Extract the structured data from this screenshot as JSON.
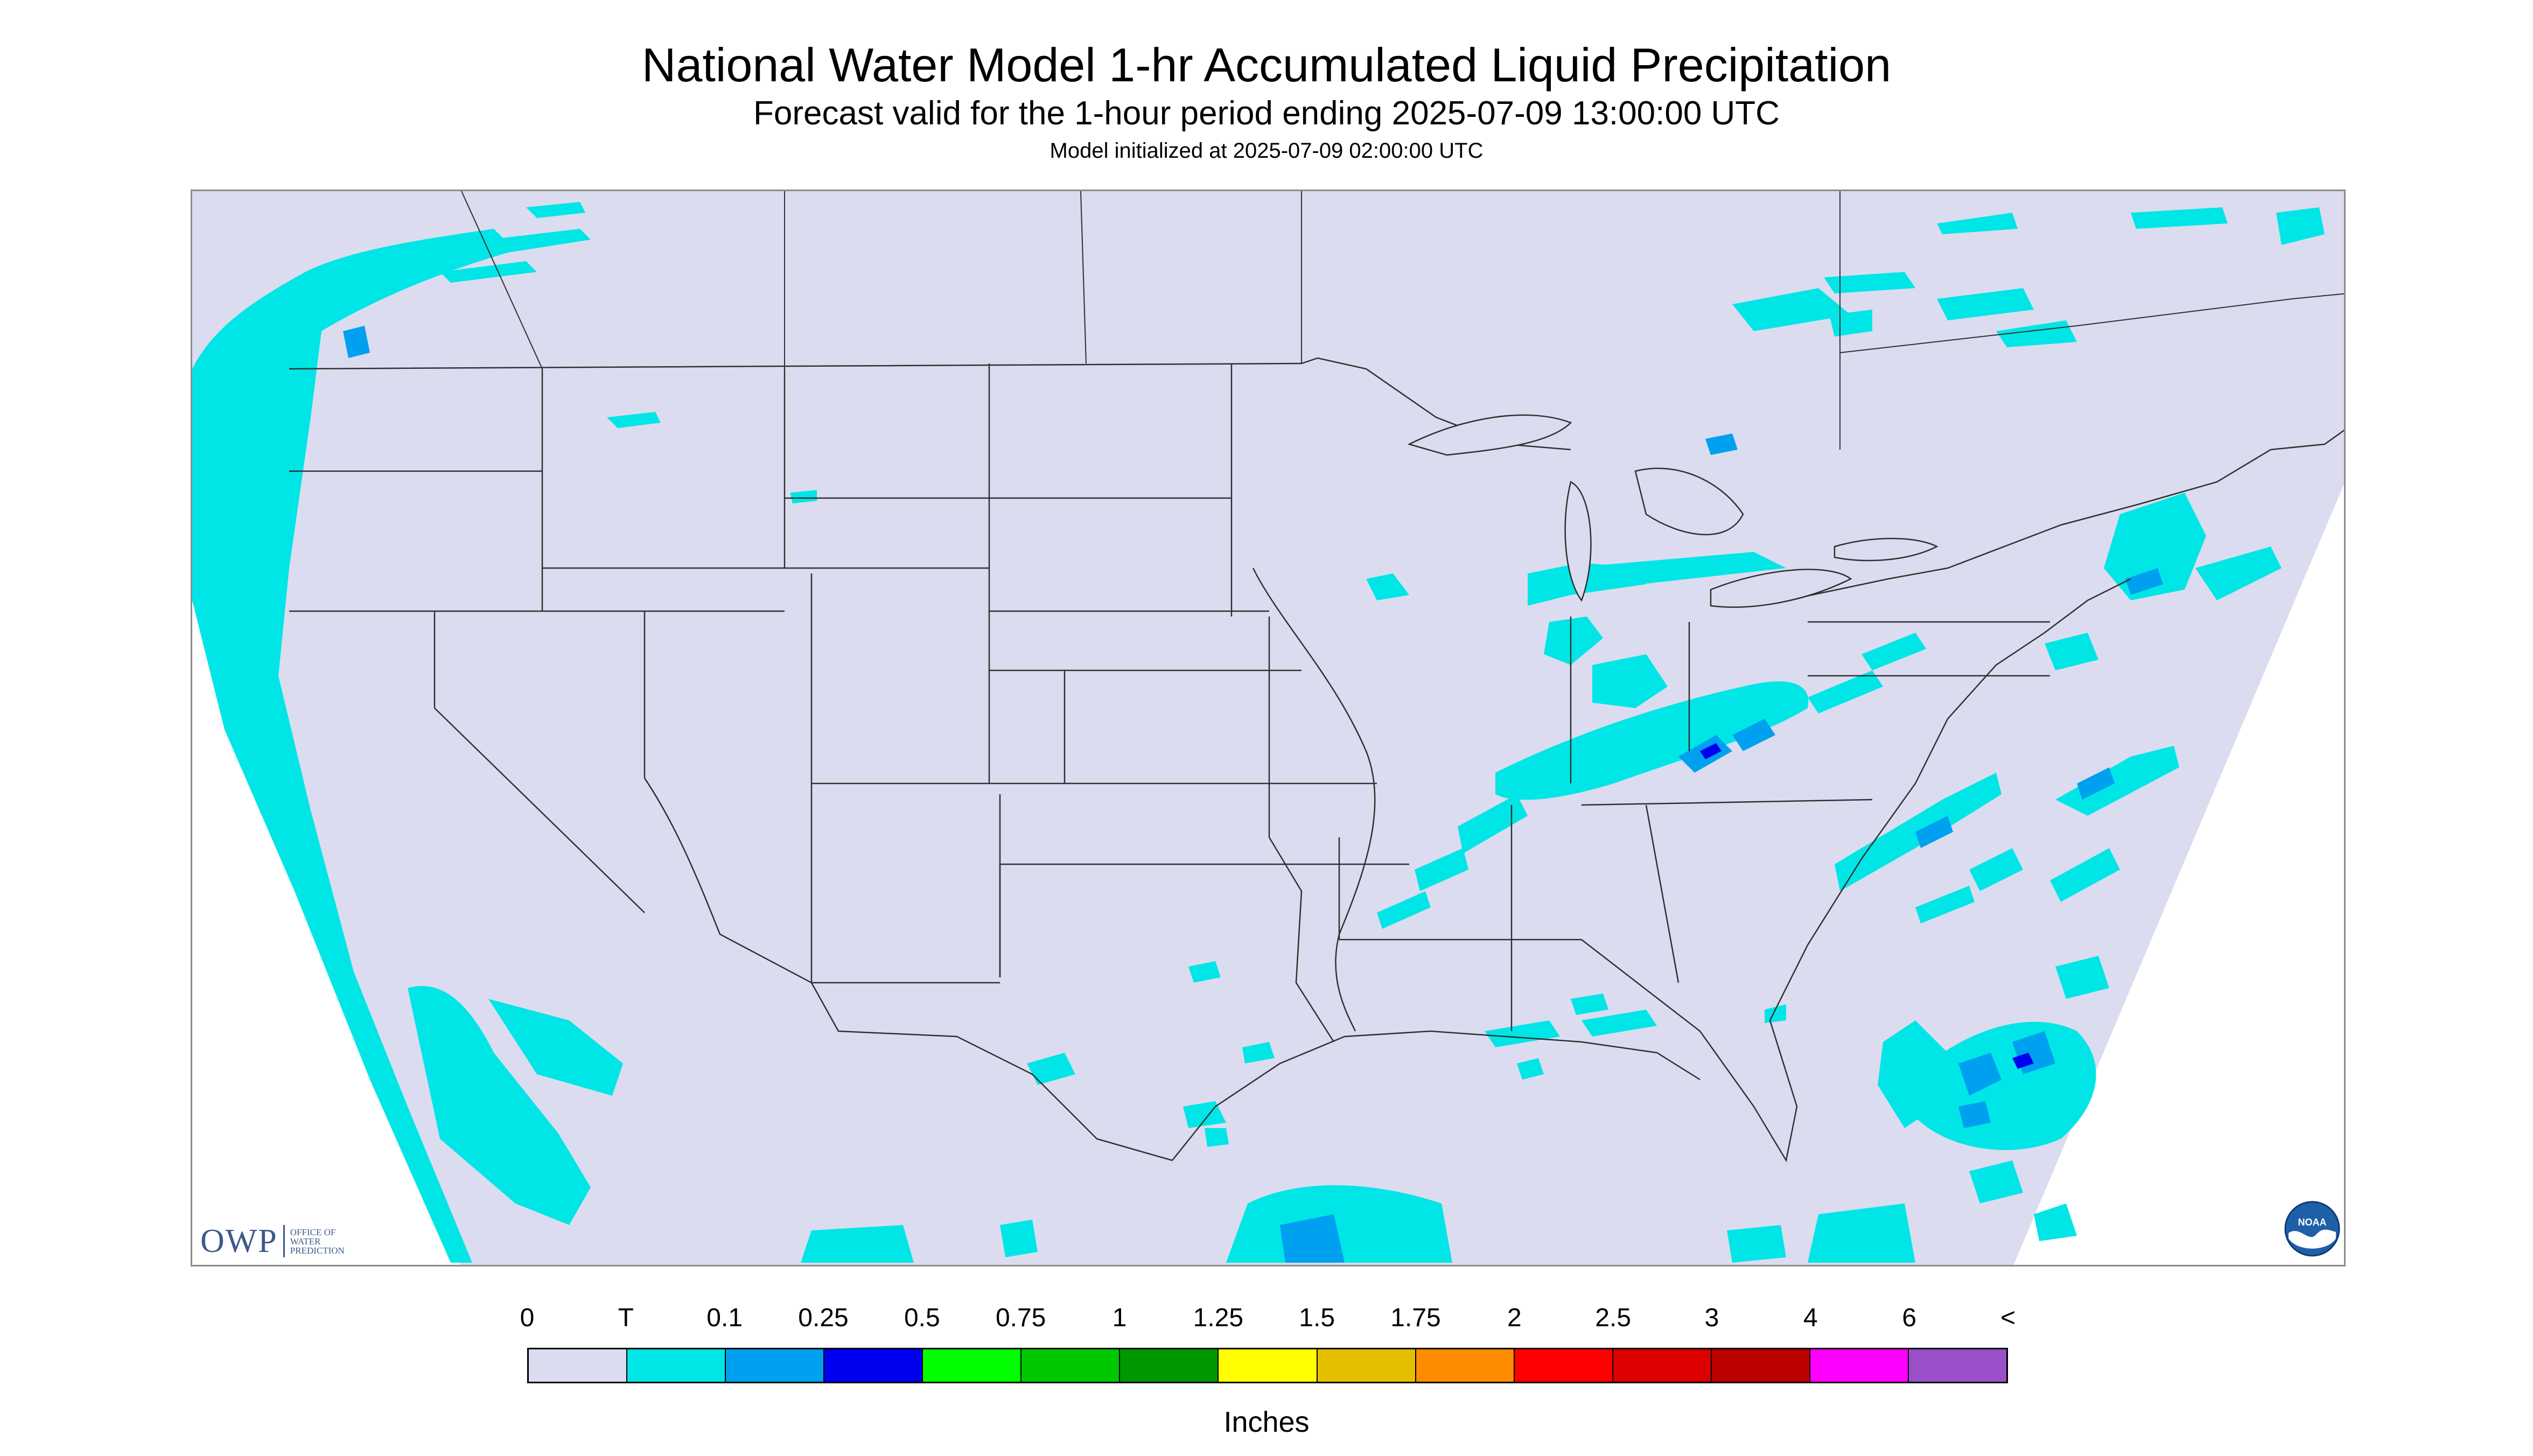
{
  "header": {
    "title": "National Water Model 1-hr Accumulated Liquid Precipitation",
    "subtitle": "Forecast valid for the 1-hour period ending 2025-07-09 13:00:00 UTC",
    "init": "Model initialized at 2025-07-09 02:00:00 UTC"
  },
  "logos": {
    "owp_mark": "OWP",
    "owp_line1": "Office of",
    "owp_line2": "Water",
    "owp_line3": "Prediction",
    "noaa": "NOAA"
  },
  "legend": {
    "ticks": [
      "0",
      "T",
      "0.1",
      "0.25",
      "0.5",
      "0.75",
      "1",
      "1.25",
      "1.5",
      "1.75",
      "2",
      "2.5",
      "3",
      "4",
      "6",
      "<"
    ],
    "colors": [
      "#dcdcf0",
      "#00e6e6",
      "#00a0f0",
      "#0000f0",
      "#00ff00",
      "#00c800",
      "#009600",
      "#ffff00",
      "#e6be00",
      "#ff8c00",
      "#ff0000",
      "#dc0000",
      "#bc0000",
      "#ff00ff",
      "#9a50c8"
    ],
    "units": "Inches"
  },
  "map": {
    "background_color": "#dcdcf0",
    "precip_light_color": "#00e6e6",
    "precip_moderate_color": "#00a0f0",
    "precip_heavy_color": "#0000f0"
  }
}
